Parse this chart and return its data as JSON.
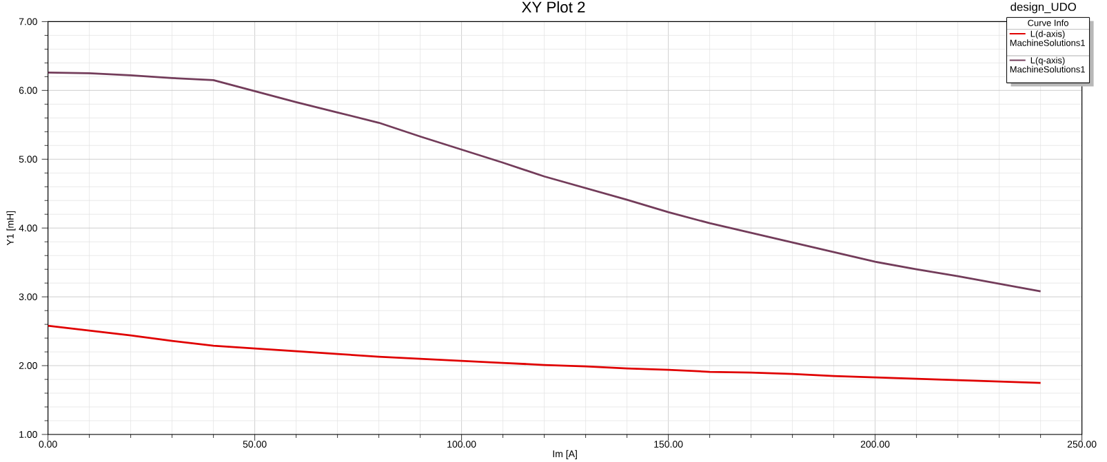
{
  "chart_data": {
    "type": "line",
    "title": "XY Plot 2",
    "xlabel": "Im [A]",
    "ylabel": "Y1 [mH]",
    "legend_title": "Curve Info",
    "annotations": [
      "design_UDO"
    ],
    "x": [
      0,
      10,
      20,
      30,
      40,
      50,
      60,
      70,
      80,
      90,
      100,
      110,
      120,
      130,
      140,
      150,
      160,
      170,
      180,
      190,
      200,
      210,
      220,
      230,
      240
    ],
    "series": [
      {
        "name": "L(d-axis) MachineSolutions1",
        "color": "#e00000",
        "values": [
          2.58,
          2.51,
          2.44,
          2.36,
          2.29,
          2.25,
          2.21,
          2.17,
          2.13,
          2.1,
          2.07,
          2.04,
          2.01,
          1.99,
          1.96,
          1.94,
          1.91,
          1.9,
          1.88,
          1.85,
          1.83,
          1.81,
          1.79,
          1.77,
          1.75
        ]
      },
      {
        "name": "L(q-axis) MachineSolutions1",
        "color": "#733c5a",
        "values": [
          6.26,
          6.25,
          6.22,
          6.18,
          6.15,
          5.99,
          5.83,
          5.68,
          5.53,
          5.33,
          5.14,
          4.95,
          4.75,
          4.58,
          4.41,
          4.23,
          4.07,
          3.93,
          3.79,
          3.65,
          3.51,
          3.4,
          3.3,
          3.19,
          3.08
        ]
      }
    ],
    "xlim": [
      0,
      250
    ],
    "xticks": [
      {
        "value": 0,
        "label": "0.00"
      },
      {
        "value": 50,
        "label": "50.00"
      },
      {
        "value": 100,
        "label": "100.00"
      },
      {
        "value": 150,
        "label": "150.00"
      },
      {
        "value": 200,
        "label": "200.00"
      },
      {
        "value": 250,
        "label": "250.00"
      }
    ],
    "ylim": [
      1,
      7
    ],
    "yticks": [
      {
        "value": 1,
        "label": "1.00"
      },
      {
        "value": 2,
        "label": "2.00"
      },
      {
        "value": 3,
        "label": "3.00"
      },
      {
        "value": 4,
        "label": "4.00"
      },
      {
        "value": 5,
        "label": "5.00"
      },
      {
        "value": 6,
        "label": "6.00"
      },
      {
        "value": 7,
        "label": "7.00"
      }
    ],
    "grid": true,
    "legend": "top right",
    "marker": "none",
    "line_style": "solid"
  }
}
